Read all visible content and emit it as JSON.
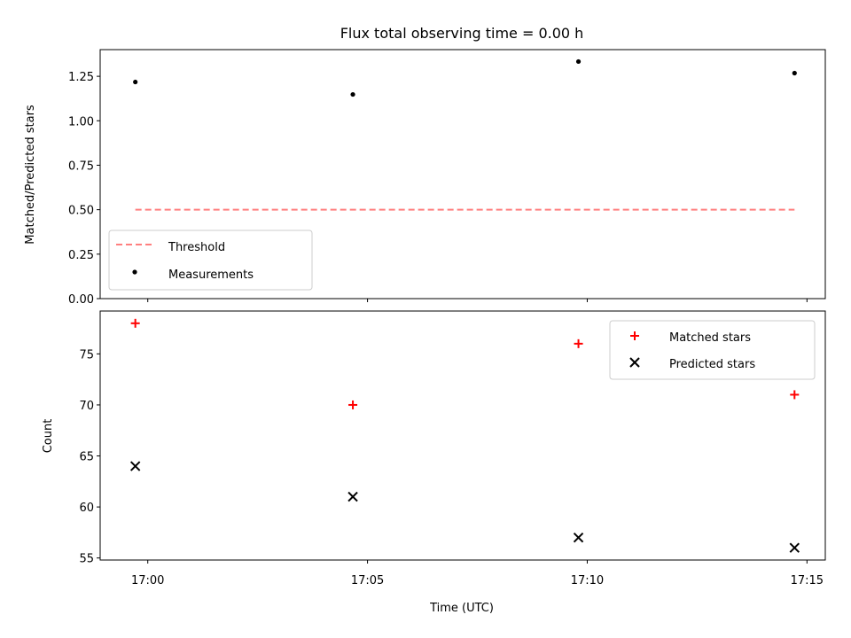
{
  "chart_data": [
    {
      "type": "scatter",
      "title": "Flux total observing time = 0.00 h",
      "xlabel": "",
      "ylabel": "Matched/Predicted stars",
      "x": [
        "16:59:43",
        "17:04:40",
        "17:09:48",
        "17:14:43"
      ],
      "series": [
        {
          "name": "Measurements",
          "kind": "scatter",
          "marker": "dot",
          "color": "#000000",
          "values": [
            1.218,
            1.148,
            1.333,
            1.268
          ]
        },
        {
          "name": "Threshold",
          "kind": "line",
          "style": "dashed",
          "color": "#ff7f7f",
          "x": [
            "16:59:43",
            "17:14:43"
          ],
          "values": [
            0.5,
            0.5
          ]
        }
      ],
      "xlim": [
        "16:58:55",
        "17:15:25"
      ],
      "ylim": [
        0.0,
        1.4
      ],
      "yticks": [
        "0.00",
        "0.25",
        "0.50",
        "0.75",
        "1.00",
        "1.25"
      ],
      "grid": false,
      "legend": "lower-left"
    },
    {
      "type": "scatter",
      "title": "",
      "xlabel": "Time (UTC)",
      "ylabel": "Count",
      "x": [
        "16:59:43",
        "17:04:40",
        "17:09:48",
        "17:14:43"
      ],
      "series": [
        {
          "name": "Matched stars",
          "marker": "plus",
          "color": "#ff0000",
          "values": [
            78,
            70,
            76,
            71
          ]
        },
        {
          "name": "Predicted stars",
          "marker": "x",
          "color": "#000000",
          "values": [
            64,
            61,
            57,
            56
          ]
        }
      ],
      "xlim": [
        "16:58:55",
        "17:15:25"
      ],
      "ylim": [
        54.8,
        79.2
      ],
      "yticks": [
        "55",
        "60",
        "65",
        "70",
        "75"
      ],
      "xticks": [
        "17:00",
        "17:05",
        "17:10",
        "17:15"
      ],
      "grid": false,
      "legend": "upper-right"
    }
  ]
}
